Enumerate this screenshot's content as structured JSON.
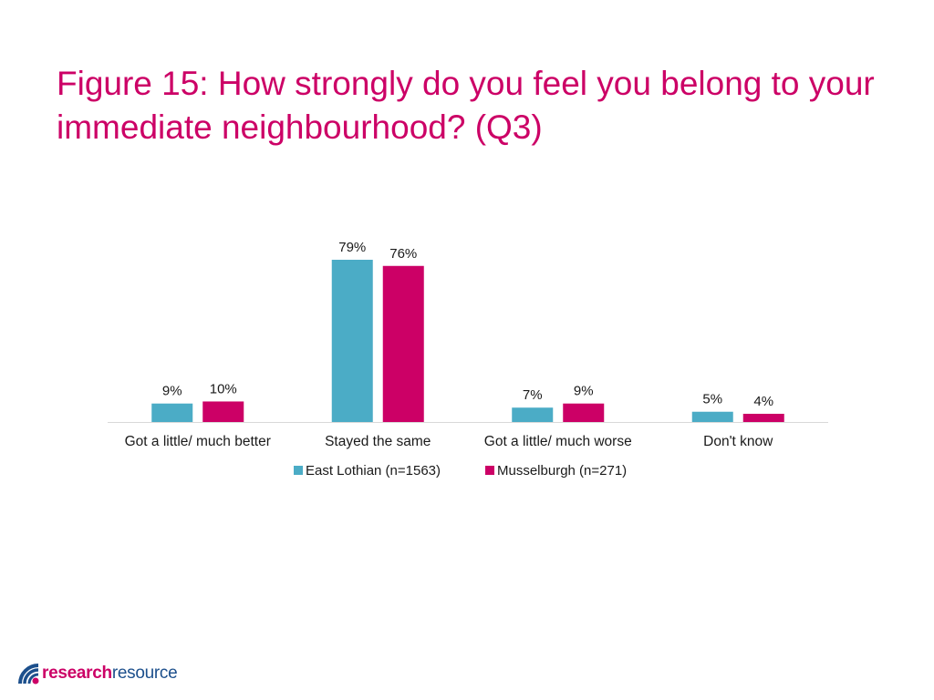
{
  "title": "Figure 15: How strongly do you feel you belong to your immediate neighbourhood? (Q3)",
  "chart_data": {
    "type": "bar",
    "title": "Figure 15: How strongly do you feel you belong to your immediate neighbourhood? (Q3)",
    "categories": [
      "Got a little/ much better",
      "Stayed the same",
      "Got a little/ much worse",
      "Don't know"
    ],
    "series": [
      {
        "name": "East Lothian (n=1563)",
        "values": [
          9,
          79,
          7,
          5
        ],
        "labels": [
          "9%",
          "79%",
          "7%",
          "5%"
        ],
        "color": "#4bacc6"
      },
      {
        "name": "Musselburgh (n=271)",
        "values": [
          10,
          76,
          9,
          4
        ],
        "labels": [
          "10%",
          "76%",
          "9%",
          "4%"
        ],
        "color": "#cc0066"
      }
    ],
    "ylim": [
      0,
      80
    ],
    "xlabel": "",
    "ylabel": "",
    "grid": false,
    "legend": "bottom"
  },
  "logo": {
    "part1": "research",
    "part2": "resource"
  }
}
